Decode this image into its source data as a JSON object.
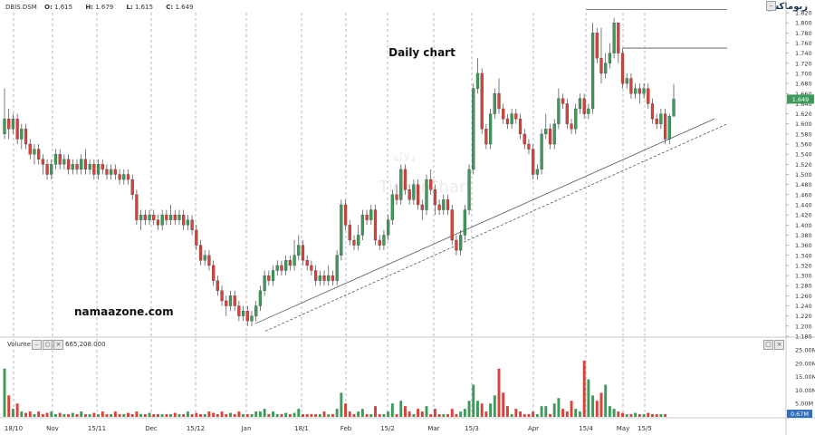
{
  "header": {
    "symbol": "DBIS.DSM",
    "open_label": "O:",
    "open": "1.615",
    "high_label": "H:",
    "high": "1.679",
    "low_label": "L:",
    "low": "1.615",
    "close_label": "C:",
    "close": "1.649",
    "brand": "زيوماكس"
  },
  "annotations": {
    "daily_chart": "Daily chart",
    "website": "namaazone.com",
    "watermark_en": "TickerChart",
    "watermark_ar": "دلالة"
  },
  "volume_panel": {
    "label": "Volume",
    "value": "665,208.000",
    "last_value_badge": "0.67M"
  },
  "colors": {
    "up": "#3d9b5a",
    "down": "#d9413a",
    "grid": "#8a8a8a",
    "badge": "#3d9b5a"
  },
  "icons": [
    "minimize-icon",
    "restore-icon",
    "close-icon",
    "chart-logo-icon"
  ],
  "chart_data": [
    {
      "type": "candlestick",
      "title": "Daily chart",
      "price_axis": {
        "min": 1.18,
        "max": 1.82,
        "step": 0.02
      },
      "x_tick_labels": [
        "18/10",
        "Nov",
        "15/11",
        "Dec",
        "15/12",
        "Jan",
        "18/1",
        "Feb",
        "15/2",
        "Mar",
        "15/3",
        "Apr",
        "15/4",
        "May",
        "15/5"
      ],
      "last_price_badge": "1.649",
      "horizontal_lines": [
        1.826,
        1.75
      ],
      "trendlines": [
        {
          "style": "solid",
          "from": [
            "2019-01-05",
            1.205
          ],
          "to": [
            "2019-05-31",
            1.61
          ]
        },
        {
          "style": "dashed",
          "from": [
            "2019-01-08",
            1.19
          ],
          "to": [
            "2019-06-04",
            1.6
          ]
        }
      ],
      "candles": [
        [
          1.58,
          1.61,
          1.67,
          1.57
        ],
        [
          1.61,
          1.59,
          1.63,
          1.57
        ],
        [
          1.59,
          1.61,
          1.62,
          1.58
        ],
        [
          1.61,
          1.57,
          1.62,
          1.56
        ],
        [
          1.57,
          1.59,
          1.6,
          1.55
        ],
        [
          1.59,
          1.56,
          1.6,
          1.55
        ],
        [
          1.56,
          1.54,
          1.57,
          1.53
        ],
        [
          1.54,
          1.55,
          1.56,
          1.52
        ],
        [
          1.55,
          1.53,
          1.56,
          1.52
        ],
        [
          1.53,
          1.52,
          1.54,
          1.5
        ],
        [
          1.52,
          1.5,
          1.53,
          1.49
        ],
        [
          1.5,
          1.52,
          1.53,
          1.49
        ],
        [
          1.52,
          1.54,
          1.55,
          1.51
        ],
        [
          1.54,
          1.52,
          1.55,
          1.51
        ],
        [
          1.52,
          1.53,
          1.54,
          1.51
        ],
        [
          1.53,
          1.51,
          1.54,
          1.5
        ],
        [
          1.51,
          1.52,
          1.53,
          1.5
        ],
        [
          1.52,
          1.51,
          1.53,
          1.5
        ],
        [
          1.51,
          1.53,
          1.54,
          1.5
        ],
        [
          1.53,
          1.51,
          1.55,
          1.5
        ],
        [
          1.51,
          1.52,
          1.53,
          1.5
        ],
        [
          1.52,
          1.5,
          1.53,
          1.49
        ],
        [
          1.5,
          1.52,
          1.53,
          1.49
        ],
        [
          1.52,
          1.51,
          1.53,
          1.5
        ],
        [
          1.51,
          1.5,
          1.52,
          1.49
        ],
        [
          1.5,
          1.51,
          1.52,
          1.49
        ],
        [
          1.51,
          1.5,
          1.52,
          1.49
        ],
        [
          1.5,
          1.49,
          1.51,
          1.48
        ],
        [
          1.49,
          1.5,
          1.51,
          1.48
        ],
        [
          1.5,
          1.49,
          1.51,
          1.48
        ],
        [
          1.49,
          1.46,
          1.5,
          1.45
        ],
        [
          1.46,
          1.41,
          1.47,
          1.4
        ],
        [
          1.41,
          1.42,
          1.43,
          1.39
        ],
        [
          1.42,
          1.41,
          1.43,
          1.4
        ],
        [
          1.41,
          1.42,
          1.43,
          1.4
        ],
        [
          1.42,
          1.41,
          1.43,
          1.4
        ],
        [
          1.41,
          1.4,
          1.42,
          1.39
        ],
        [
          1.4,
          1.42,
          1.43,
          1.39
        ],
        [
          1.42,
          1.41,
          1.43,
          1.4
        ],
        [
          1.41,
          1.42,
          1.44,
          1.4
        ],
        [
          1.42,
          1.41,
          1.43,
          1.4
        ],
        [
          1.41,
          1.42,
          1.43,
          1.4
        ],
        [
          1.42,
          1.4,
          1.43,
          1.39
        ],
        [
          1.4,
          1.41,
          1.42,
          1.39
        ],
        [
          1.41,
          1.39,
          1.42,
          1.38
        ],
        [
          1.39,
          1.36,
          1.4,
          1.35
        ],
        [
          1.36,
          1.33,
          1.37,
          1.32
        ],
        [
          1.33,
          1.34,
          1.35,
          1.32
        ],
        [
          1.34,
          1.32,
          1.35,
          1.31
        ],
        [
          1.32,
          1.29,
          1.33,
          1.28
        ],
        [
          1.29,
          1.27,
          1.3,
          1.26
        ],
        [
          1.27,
          1.25,
          1.28,
          1.24
        ],
        [
          1.25,
          1.24,
          1.26,
          1.22
        ],
        [
          1.24,
          1.26,
          1.27,
          1.23
        ],
        [
          1.26,
          1.24,
          1.27,
          1.23
        ],
        [
          1.24,
          1.22,
          1.25,
          1.21
        ],
        [
          1.22,
          1.23,
          1.24,
          1.21
        ],
        [
          1.23,
          1.21,
          1.24,
          1.2
        ],
        [
          1.21,
          1.22,
          1.23,
          1.2
        ],
        [
          1.22,
          1.24,
          1.25,
          1.21
        ],
        [
          1.24,
          1.27,
          1.28,
          1.23
        ],
        [
          1.27,
          1.3,
          1.31,
          1.26
        ],
        [
          1.3,
          1.29,
          1.31,
          1.28
        ],
        [
          1.29,
          1.31,
          1.32,
          1.28
        ],
        [
          1.31,
          1.32,
          1.33,
          1.3
        ],
        [
          1.32,
          1.31,
          1.33,
          1.3
        ],
        [
          1.31,
          1.33,
          1.34,
          1.3
        ],
        [
          1.33,
          1.32,
          1.34,
          1.31
        ],
        [
          1.32,
          1.34,
          1.37,
          1.31
        ],
        [
          1.34,
          1.36,
          1.38,
          1.33
        ],
        [
          1.36,
          1.33,
          1.37,
          1.32
        ],
        [
          1.33,
          1.32,
          1.34,
          1.31
        ],
        [
          1.32,
          1.31,
          1.33,
          1.3
        ],
        [
          1.31,
          1.29,
          1.32,
          1.28
        ],
        [
          1.29,
          1.3,
          1.31,
          1.28
        ],
        [
          1.3,
          1.29,
          1.31,
          1.28
        ],
        [
          1.29,
          1.3,
          1.32,
          1.28
        ],
        [
          1.3,
          1.29,
          1.31,
          1.28
        ],
        [
          1.29,
          1.34,
          1.35,
          1.28
        ],
        [
          1.34,
          1.44,
          1.45,
          1.33
        ],
        [
          1.44,
          1.4,
          1.45,
          1.39
        ],
        [
          1.4,
          1.37,
          1.41,
          1.36
        ],
        [
          1.37,
          1.36,
          1.38,
          1.35
        ],
        [
          1.36,
          1.38,
          1.4,
          1.35
        ],
        [
          1.38,
          1.42,
          1.43,
          1.37
        ],
        [
          1.42,
          1.41,
          1.43,
          1.4
        ],
        [
          1.41,
          1.43,
          1.44,
          1.4
        ],
        [
          1.43,
          1.37,
          1.44,
          1.36
        ],
        [
          1.37,
          1.36,
          1.38,
          1.35
        ],
        [
          1.36,
          1.38,
          1.39,
          1.35
        ],
        [
          1.38,
          1.41,
          1.42,
          1.37
        ],
        [
          1.41,
          1.46,
          1.47,
          1.4
        ],
        [
          1.46,
          1.45,
          1.48,
          1.44
        ],
        [
          1.45,
          1.51,
          1.52,
          1.44
        ],
        [
          1.51,
          1.47,
          1.52,
          1.46
        ],
        [
          1.47,
          1.45,
          1.48,
          1.44
        ],
        [
          1.45,
          1.48,
          1.49,
          1.44
        ],
        [
          1.48,
          1.44,
          1.49,
          1.43
        ],
        [
          1.44,
          1.43,
          1.45,
          1.41
        ],
        [
          1.43,
          1.49,
          1.5,
          1.42
        ],
        [
          1.49,
          1.47,
          1.51,
          1.46
        ],
        [
          1.47,
          1.44,
          1.48,
          1.42
        ],
        [
          1.44,
          1.43,
          1.45,
          1.42
        ],
        [
          1.43,
          1.45,
          1.46,
          1.42
        ],
        [
          1.45,
          1.43,
          1.46,
          1.42
        ],
        [
          1.43,
          1.37,
          1.44,
          1.36
        ],
        [
          1.37,
          1.35,
          1.38,
          1.34
        ],
        [
          1.35,
          1.38,
          1.39,
          1.34
        ],
        [
          1.38,
          1.43,
          1.44,
          1.37
        ],
        [
          1.43,
          1.51,
          1.52,
          1.42
        ],
        [
          1.51,
          1.67,
          1.68,
          1.5
        ],
        [
          1.67,
          1.7,
          1.73,
          1.66
        ],
        [
          1.7,
          1.59,
          1.71,
          1.58
        ],
        [
          1.59,
          1.56,
          1.6,
          1.55
        ],
        [
          1.56,
          1.62,
          1.63,
          1.55
        ],
        [
          1.62,
          1.66,
          1.67,
          1.61
        ],
        [
          1.66,
          1.63,
          1.69,
          1.62
        ],
        [
          1.63,
          1.61,
          1.64,
          1.6
        ],
        [
          1.61,
          1.6,
          1.62,
          1.59
        ],
        [
          1.6,
          1.62,
          1.63,
          1.59
        ],
        [
          1.62,
          1.61,
          1.63,
          1.6
        ],
        [
          1.61,
          1.58,
          1.62,
          1.57
        ],
        [
          1.58,
          1.56,
          1.59,
          1.55
        ],
        [
          1.56,
          1.55,
          1.57,
          1.54
        ],
        [
          1.55,
          1.5,
          1.56,
          1.49
        ],
        [
          1.5,
          1.51,
          1.52,
          1.49
        ],
        [
          1.51,
          1.58,
          1.59,
          1.5
        ],
        [
          1.58,
          1.59,
          1.62,
          1.57
        ],
        [
          1.59,
          1.56,
          1.6,
          1.55
        ],
        [
          1.56,
          1.6,
          1.61,
          1.55
        ],
        [
          1.6,
          1.65,
          1.67,
          1.59
        ],
        [
          1.65,
          1.64,
          1.66,
          1.63
        ],
        [
          1.64,
          1.6,
          1.65,
          1.59
        ],
        [
          1.6,
          1.59,
          1.61,
          1.58
        ],
        [
          1.59,
          1.63,
          1.64,
          1.58
        ],
        [
          1.63,
          1.65,
          1.66,
          1.62
        ],
        [
          1.65,
          1.62,
          1.66,
          1.61
        ],
        [
          1.62,
          1.63,
          1.64,
          1.61
        ],
        [
          1.63,
          1.78,
          1.8,
          1.62
        ],
        [
          1.78,
          1.73,
          1.79,
          1.72
        ],
        [
          1.73,
          1.7,
          1.79,
          1.68
        ],
        [
          1.7,
          1.72,
          1.74,
          1.69
        ],
        [
          1.72,
          1.74,
          1.76,
          1.71
        ],
        [
          1.74,
          1.8,
          1.81,
          1.73
        ],
        [
          1.8,
          1.74,
          1.8,
          1.72
        ],
        [
          1.74,
          1.68,
          1.75,
          1.67
        ],
        [
          1.68,
          1.69,
          1.7,
          1.67
        ],
        [
          1.69,
          1.66,
          1.7,
          1.65
        ],
        [
          1.66,
          1.67,
          1.68,
          1.65
        ],
        [
          1.67,
          1.66,
          1.68,
          1.64
        ],
        [
          1.66,
          1.67,
          1.68,
          1.65
        ],
        [
          1.67,
          1.64,
          1.68,
          1.63
        ],
        [
          1.64,
          1.61,
          1.65,
          1.6
        ],
        [
          1.61,
          1.6,
          1.62,
          1.59
        ],
        [
          1.6,
          1.62,
          1.63,
          1.59
        ],
        [
          1.62,
          1.57,
          1.63,
          1.56
        ],
        [
          1.57,
          1.615,
          1.62,
          1.56
        ],
        [
          1.615,
          1.649,
          1.679,
          1.615
        ]
      ],
      "volume_axis": {
        "min": 0,
        "max": 25,
        "unit": "M",
        "tick_labels": [
          "25.00M",
          "20.00M",
          "15.00M",
          "10.00M",
          "5.00M"
        ]
      },
      "volumes": [
        18,
        8,
        3,
        5,
        2,
        1.5,
        2,
        1,
        2,
        1,
        1.5,
        2,
        1,
        1.5,
        1,
        1,
        1.5,
        1,
        2,
        1,
        1,
        1.5,
        1,
        2,
        1,
        1,
        2,
        1,
        1,
        1.5,
        1,
        2,
        1,
        1,
        1.5,
        1,
        1,
        1,
        1,
        1,
        1.5,
        1,
        1,
        2,
        1,
        1.5,
        1,
        1,
        2,
        1.5,
        1,
        2,
        1,
        1.5,
        1,
        2,
        1,
        1,
        1,
        2,
        2,
        3,
        1,
        2,
        1,
        1,
        1.5,
        1,
        1.5,
        3,
        1,
        1,
        1,
        1,
        1,
        2,
        1,
        1,
        3,
        9,
        5,
        2,
        1,
        2,
        3,
        1,
        1,
        4,
        1,
        1,
        2,
        5,
        1,
        6,
        4,
        2,
        1,
        3,
        2,
        4,
        1,
        3,
        1,
        1,
        1,
        3,
        1,
        2,
        3,
        6,
        12,
        6,
        5,
        2,
        5,
        8,
        18,
        9,
        4,
        1,
        3,
        2,
        1,
        1,
        2,
        1,
        4,
        4,
        1,
        5,
        7,
        3,
        2,
        6,
        3,
        2,
        21,
        14,
        8,
        6,
        9,
        12,
        4,
        3,
        2,
        1.5,
        1,
        1,
        1.5,
        1,
        1,
        1.5,
        1,
        1,
        1,
        1
      ]
    }
  ]
}
